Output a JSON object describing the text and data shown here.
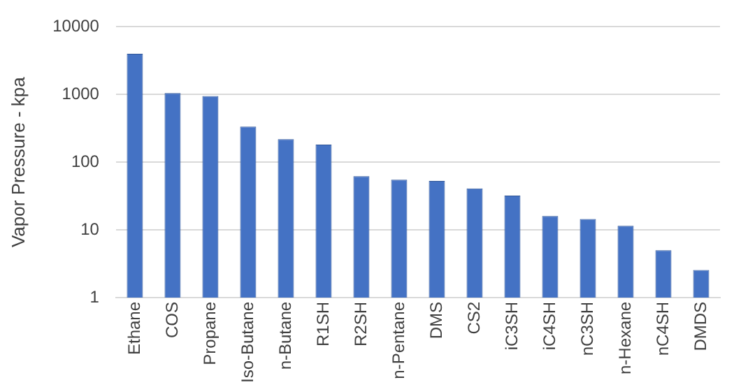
{
  "chart_data": {
    "type": "bar",
    "ylabel": "Vapor Pressure - kpa",
    "categories": [
      "Ethane",
      "COS",
      "Propane",
      "Iso-Butane",
      "n-Butane",
      "R1SH",
      "R2SH",
      "n-Pentane",
      "DMS",
      "CS2",
      "iC3SH",
      "iC4SH",
      "nC3SH",
      "n-Hexane",
      "nC4SH",
      "DMDS"
    ],
    "values": [
      4000,
      1050,
      950,
      336,
      219,
      182,
      62,
      55,
      53,
      41,
      32,
      16,
      14.5,
      11.5,
      5,
      2.55
    ],
    "color": "#4472c4",
    "log": true,
    "ylim": [
      1,
      10000
    ],
    "yticks": [
      1,
      10,
      100,
      1000,
      10000
    ],
    "grid": "y"
  }
}
